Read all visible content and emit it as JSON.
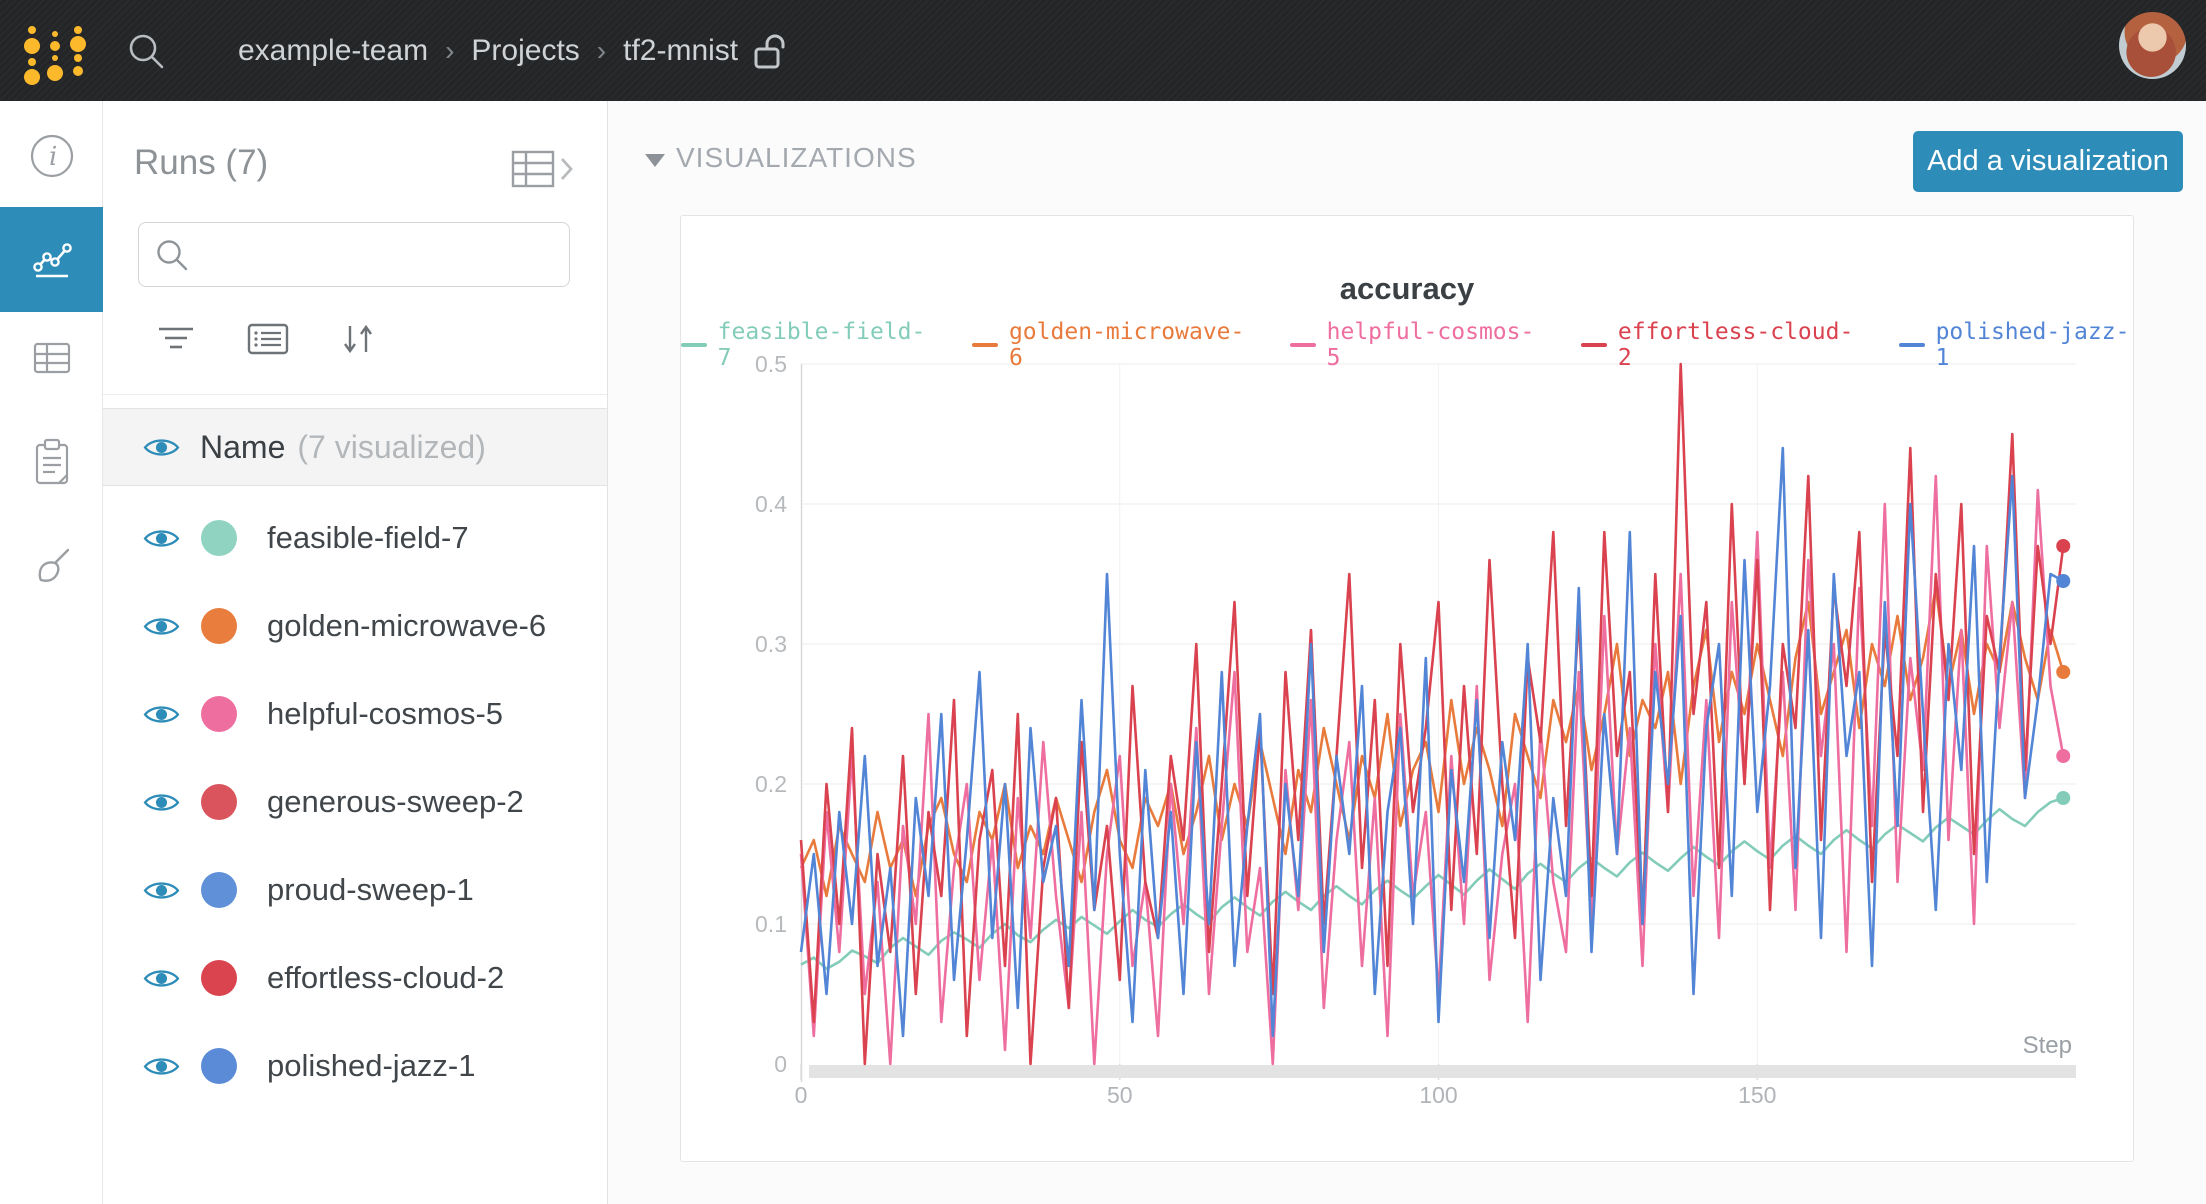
{
  "navbar": {
    "separator": "›",
    "breadcrumb": [
      "example-team",
      "Projects",
      "tf2-mnist"
    ]
  },
  "runs_panel": {
    "title": "Runs (7)",
    "search_value": "",
    "header_row": {
      "label": "Name",
      "sublabel": "(7 visualized)"
    },
    "runs": [
      {
        "name": "feasible-field-7",
        "color": "#8fd3c0"
      },
      {
        "name": "golden-microwave-6",
        "color": "#e87d3d"
      },
      {
        "name": "helpful-cosmos-5",
        "color": "#ee6e9f"
      },
      {
        "name": "generous-sweep-2",
        "color": "#d9545c"
      },
      {
        "name": "proud-sweep-1",
        "color": "#6090d8"
      },
      {
        "name": "effortless-cloud-2",
        "color": "#d9444f"
      },
      {
        "name": "polished-jazz-1",
        "color": "#5b8bd6"
      }
    ]
  },
  "main": {
    "section_title": "VISUALIZATIONS",
    "add_button_label": "Add a visualization"
  },
  "chart_data": {
    "type": "line",
    "title": "accuracy",
    "xlabel": "Step",
    "xlim": [
      0,
      200
    ],
    "ylim": [
      0,
      0.5
    ],
    "x_ticks": [
      0,
      50,
      100,
      150
    ],
    "y_ticks": [
      0,
      0.1,
      0.2,
      0.3,
      0.4,
      0.5
    ],
    "legend_position": "top",
    "grid": true,
    "x_start": 0,
    "x_step": 2,
    "series": [
      {
        "name": "feasible-field-7",
        "color": "#83ccb9",
        "values": [
          0.071,
          0.076,
          0.068,
          0.073,
          0.081,
          0.077,
          0.072,
          0.083,
          0.09,
          0.084,
          0.078,
          0.088,
          0.094,
          0.089,
          0.083,
          0.093,
          0.1,
          0.092,
          0.087,
          0.096,
          0.103,
          0.097,
          0.105,
          0.099,
          0.093,
          0.102,
          0.11,
          0.103,
          0.098,
          0.107,
          0.114,
          0.107,
          0.101,
          0.112,
          0.119,
          0.112,
          0.106,
          0.116,
          0.123,
          0.116,
          0.11,
          0.12,
          0.127,
          0.12,
          0.114,
          0.124,
          0.131,
          0.124,
          0.118,
          0.127,
          0.135,
          0.128,
          0.121,
          0.131,
          0.139,
          0.132,
          0.125,
          0.136,
          0.143,
          0.136,
          0.13,
          0.14,
          0.147,
          0.14,
          0.134,
          0.144,
          0.151,
          0.144,
          0.138,
          0.147,
          0.155,
          0.148,
          0.142,
          0.152,
          0.159,
          0.152,
          0.146,
          0.156,
          0.163,
          0.156,
          0.15,
          0.16,
          0.167,
          0.16,
          0.154,
          0.164,
          0.171,
          0.165,
          0.159,
          0.169,
          0.176,
          0.17,
          0.164,
          0.174,
          0.182,
          0.175,
          0.17,
          0.18,
          0.187,
          0.19
        ]
      },
      {
        "name": "golden-microwave-6",
        "color": "#e87a3c",
        "values": [
          0.14,
          0.16,
          0.12,
          0.17,
          0.15,
          0.13,
          0.18,
          0.14,
          0.16,
          0.12,
          0.17,
          0.19,
          0.15,
          0.13,
          0.18,
          0.16,
          0.2,
          0.14,
          0.17,
          0.15,
          0.19,
          0.16,
          0.13,
          0.18,
          0.21,
          0.16,
          0.14,
          0.19,
          0.17,
          0.2,
          0.15,
          0.18,
          0.22,
          0.16,
          0.2,
          0.17,
          0.23,
          0.19,
          0.15,
          0.21,
          0.18,
          0.24,
          0.2,
          0.16,
          0.22,
          0.19,
          0.25,
          0.17,
          0.21,
          0.23,
          0.18,
          0.26,
          0.2,
          0.24,
          0.21,
          0.17,
          0.25,
          0.22,
          0.19,
          0.26,
          0.23,
          0.27,
          0.21,
          0.25,
          0.3,
          0.22,
          0.26,
          0.24,
          0.28,
          0.2,
          0.27,
          0.31,
          0.23,
          0.28,
          0.25,
          0.3,
          0.26,
          0.22,
          0.29,
          0.33,
          0.25,
          0.28,
          0.31,
          0.24,
          0.3,
          0.27,
          0.32,
          0.26,
          0.29,
          0.34,
          0.27,
          0.31,
          0.25,
          0.3,
          0.28,
          0.33,
          0.29,
          0.26,
          0.31,
          0.28
        ]
      },
      {
        "name": "helpful-cosmos-5",
        "color": "#ee6ea0",
        "values": [
          0.15,
          0.02,
          0.18,
          0.08,
          0.22,
          0.05,
          0.13,
          0.0,
          0.17,
          0.1,
          0.25,
          0.03,
          0.14,
          0.2,
          0.06,
          0.16,
          0.01,
          0.19,
          0.09,
          0.23,
          0.12,
          0.04,
          0.18,
          0.0,
          0.15,
          0.22,
          0.07,
          0.13,
          0.02,
          0.2,
          0.1,
          0.24,
          0.05,
          0.17,
          0.28,
          0.08,
          0.14,
          0.0,
          0.21,
          0.11,
          0.26,
          0.04,
          0.16,
          0.23,
          0.07,
          0.19,
          0.02,
          0.25,
          0.12,
          0.18,
          0.05,
          0.22,
          0.1,
          0.27,
          0.06,
          0.15,
          0.2,
          0.03,
          0.24,
          0.13,
          0.08,
          0.28,
          0.1,
          0.32,
          0.15,
          0.24,
          0.07,
          0.3,
          0.18,
          0.35,
          0.12,
          0.26,
          0.09,
          0.33,
          0.2,
          0.38,
          0.14,
          0.28,
          0.11,
          0.36,
          0.22,
          0.3,
          0.08,
          0.34,
          0.17,
          0.4,
          0.13,
          0.29,
          0.21,
          0.42,
          0.16,
          0.31,
          0.1,
          0.37,
          0.24,
          0.33,
          0.19,
          0.41,
          0.27,
          0.22
        ]
      },
      {
        "name": "effortless-cloud-2",
        "color": "#d9424e",
        "values": [
          0.16,
          0.03,
          0.2,
          0.1,
          0.24,
          0.0,
          0.15,
          0.08,
          0.22,
          0.05,
          0.18,
          0.12,
          0.26,
          0.02,
          0.16,
          0.21,
          0.07,
          0.25,
          0.0,
          0.14,
          0.19,
          0.04,
          0.23,
          0.11,
          0.17,
          0.06,
          0.27,
          0.13,
          0.09,
          0.22,
          0.16,
          0.3,
          0.08,
          0.2,
          0.33,
          0.12,
          0.24,
          0.05,
          0.28,
          0.16,
          0.31,
          0.1,
          0.22,
          0.35,
          0.14,
          0.26,
          0.07,
          0.3,
          0.18,
          0.24,
          0.33,
          0.11,
          0.27,
          0.15,
          0.36,
          0.2,
          0.09,
          0.29,
          0.23,
          0.38,
          0.17,
          0.32,
          0.12,
          0.38,
          0.22,
          0.28,
          0.1,
          0.35,
          0.18,
          0.5,
          0.25,
          0.33,
          0.14,
          0.4,
          0.2,
          0.36,
          0.11,
          0.3,
          0.24,
          0.42,
          0.16,
          0.34,
          0.27,
          0.38,
          0.13,
          0.31,
          0.22,
          0.44,
          0.18,
          0.35,
          0.26,
          0.4,
          0.15,
          0.32,
          0.28,
          0.45,
          0.21,
          0.37,
          0.3,
          0.37
        ]
      },
      {
        "name": "polished-jazz-1",
        "color": "#5285d6",
        "values": [
          0.08,
          0.15,
          0.05,
          0.18,
          0.1,
          0.22,
          0.07,
          0.14,
          0.02,
          0.19,
          0.12,
          0.25,
          0.06,
          0.16,
          0.28,
          0.09,
          0.2,
          0.04,
          0.24,
          0.13,
          0.17,
          0.07,
          0.26,
          0.11,
          0.35,
          0.15,
          0.03,
          0.21,
          0.09,
          0.18,
          0.05,
          0.23,
          0.1,
          0.28,
          0.07,
          0.17,
          0.25,
          0.02,
          0.2,
          0.12,
          0.3,
          0.08,
          0.22,
          0.15,
          0.27,
          0.05,
          0.18,
          0.24,
          0.1,
          0.29,
          0.03,
          0.21,
          0.13,
          0.26,
          0.09,
          0.23,
          0.16,
          0.3,
          0.06,
          0.19,
          0.12,
          0.34,
          0.08,
          0.25,
          0.15,
          0.38,
          0.1,
          0.28,
          0.2,
          0.32,
          0.05,
          0.24,
          0.3,
          0.12,
          0.36,
          0.18,
          0.27,
          0.44,
          0.14,
          0.31,
          0.09,
          0.35,
          0.22,
          0.28,
          0.07,
          0.33,
          0.17,
          0.4,
          0.25,
          0.11,
          0.3,
          0.21,
          0.37,
          0.13,
          0.29,
          0.42,
          0.19,
          0.26,
          0.35,
          0.345
        ]
      }
    ]
  }
}
